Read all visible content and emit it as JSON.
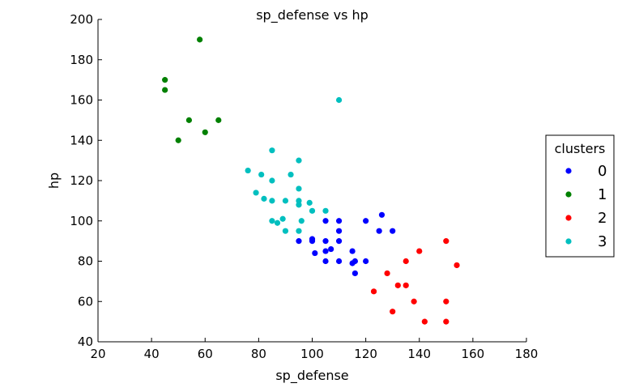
{
  "chart_data": {
    "type": "scatter",
    "title": "sp_defense vs hp",
    "xlabel": "sp_defense",
    "ylabel": "hp",
    "xlim": [
      20,
      180
    ],
    "ylim": [
      40,
      200
    ],
    "xticks": [
      "20",
      "40",
      "60",
      "80",
      "100",
      "120",
      "140",
      "160",
      "180"
    ],
    "yticks": [
      "40",
      "60",
      "80",
      "100",
      "120",
      "140",
      "160",
      "180",
      "200"
    ],
    "grid": false,
    "legend": {
      "title": "clusters",
      "placement": "center-right, outside plot"
    },
    "series": [
      {
        "name": "0",
        "color": "#0000ff",
        "points": [
          [
            95,
            90
          ],
          [
            100,
            91
          ],
          [
            100,
            90
          ],
          [
            101,
            84
          ],
          [
            105,
            100
          ],
          [
            105,
            90
          ],
          [
            105,
            85
          ],
          [
            105,
            80
          ],
          [
            107,
            86
          ],
          [
            110,
            100
          ],
          [
            110,
            95
          ],
          [
            110,
            90
          ],
          [
            110,
            80
          ],
          [
            115,
            85
          ],
          [
            115,
            79
          ],
          [
            116,
            80
          ],
          [
            116,
            74
          ],
          [
            120,
            100
          ],
          [
            120,
            80
          ],
          [
            125,
            95
          ],
          [
            126,
            103
          ],
          [
            130,
            95
          ]
        ]
      },
      {
        "name": "1",
        "color": "#008000",
        "points": [
          [
            45,
            170
          ],
          [
            45,
            165
          ],
          [
            50,
            140
          ],
          [
            54,
            150
          ],
          [
            58,
            190
          ],
          [
            60,
            144
          ],
          [
            65,
            150
          ]
        ]
      },
      {
        "name": "2",
        "color": "#ff0000",
        "points": [
          [
            123,
            65
          ],
          [
            128,
            74
          ],
          [
            130,
            55
          ],
          [
            132,
            68
          ],
          [
            135,
            80
          ],
          [
            135,
            68
          ],
          [
            138,
            60
          ],
          [
            140,
            85
          ],
          [
            142,
            50
          ],
          [
            150,
            90
          ],
          [
            150,
            60
          ],
          [
            150,
            50
          ],
          [
            154,
            78
          ]
        ]
      },
      {
        "name": "3",
        "color": "#00bfbf",
        "points": [
          [
            76,
            125
          ],
          [
            79,
            114
          ],
          [
            81,
            123
          ],
          [
            82,
            111
          ],
          [
            85,
            135
          ],
          [
            85,
            120
          ],
          [
            85,
            110
          ],
          [
            85,
            100
          ],
          [
            87,
            99
          ],
          [
            89,
            101
          ],
          [
            90,
            110
          ],
          [
            90,
            95
          ],
          [
            92,
            123
          ],
          [
            95,
            130
          ],
          [
            95,
            116
          ],
          [
            95,
            110
          ],
          [
            95,
            108
          ],
          [
            95,
            95
          ],
          [
            96,
            100
          ],
          [
            99,
            109
          ],
          [
            100,
            105
          ],
          [
            105,
            105
          ],
          [
            110,
            160
          ]
        ]
      }
    ]
  }
}
